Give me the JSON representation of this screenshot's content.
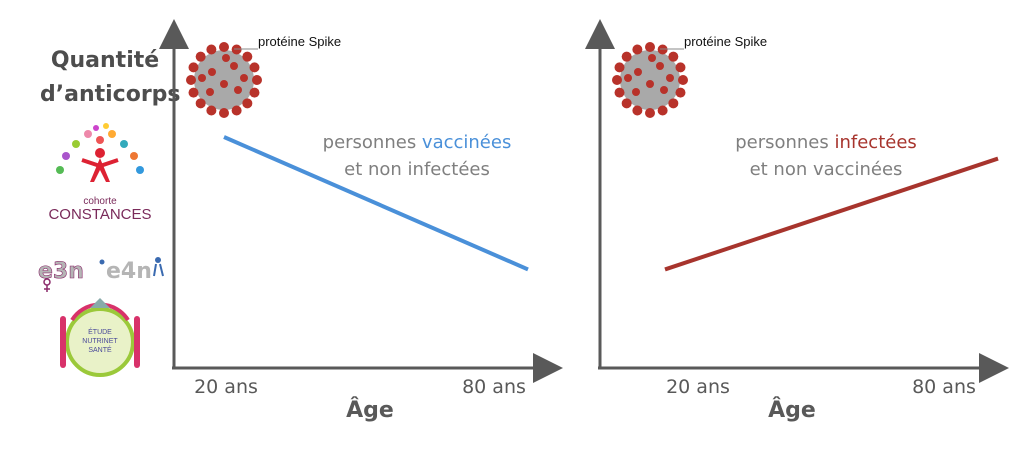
{
  "y_axis_title": [
    "Quantité",
    "d’anticorps"
  ],
  "logos": {
    "constances_small": "cohorte",
    "constances_big": "CONSTANCES",
    "e3n": "e3n",
    "e4n": "e4n",
    "nutrinet": [
      "ÉTUDE",
      "NUTRINET",
      "SANTÉ"
    ]
  },
  "colors": {
    "axis": "#595959",
    "vaccinated": "#4a90d9",
    "infected": "#a7342d",
    "text_gray": "#7f7f7f",
    "virus": "#b8322a"
  },
  "chart_data": [
    {
      "type": "line",
      "spike_label": "protéine Spike",
      "annotation": {
        "prefix": "personnes ",
        "highlight": "vaccinées",
        "line2": "et non infectées"
      },
      "xlabel": "Âge",
      "tick_labels": [
        "20 ans",
        "80 ans"
      ],
      "x": [
        20,
        80
      ],
      "series": [
        {
          "values": [
            0.75,
            0.32
          ]
        }
      ],
      "ylim": [
        0,
        1
      ]
    },
    {
      "type": "line",
      "spike_label": "protéine Spike",
      "annotation": {
        "prefix": "personnes ",
        "highlight": "infectées",
        "line2": "et non vaccinées"
      },
      "xlabel": "Âge",
      "tick_labels": [
        "20 ans",
        "80 ans"
      ],
      "x": [
        20,
        80
      ],
      "series": [
        {
          "values": [
            0.32,
            0.68
          ]
        }
      ],
      "ylim": [
        0,
        1
      ]
    }
  ]
}
